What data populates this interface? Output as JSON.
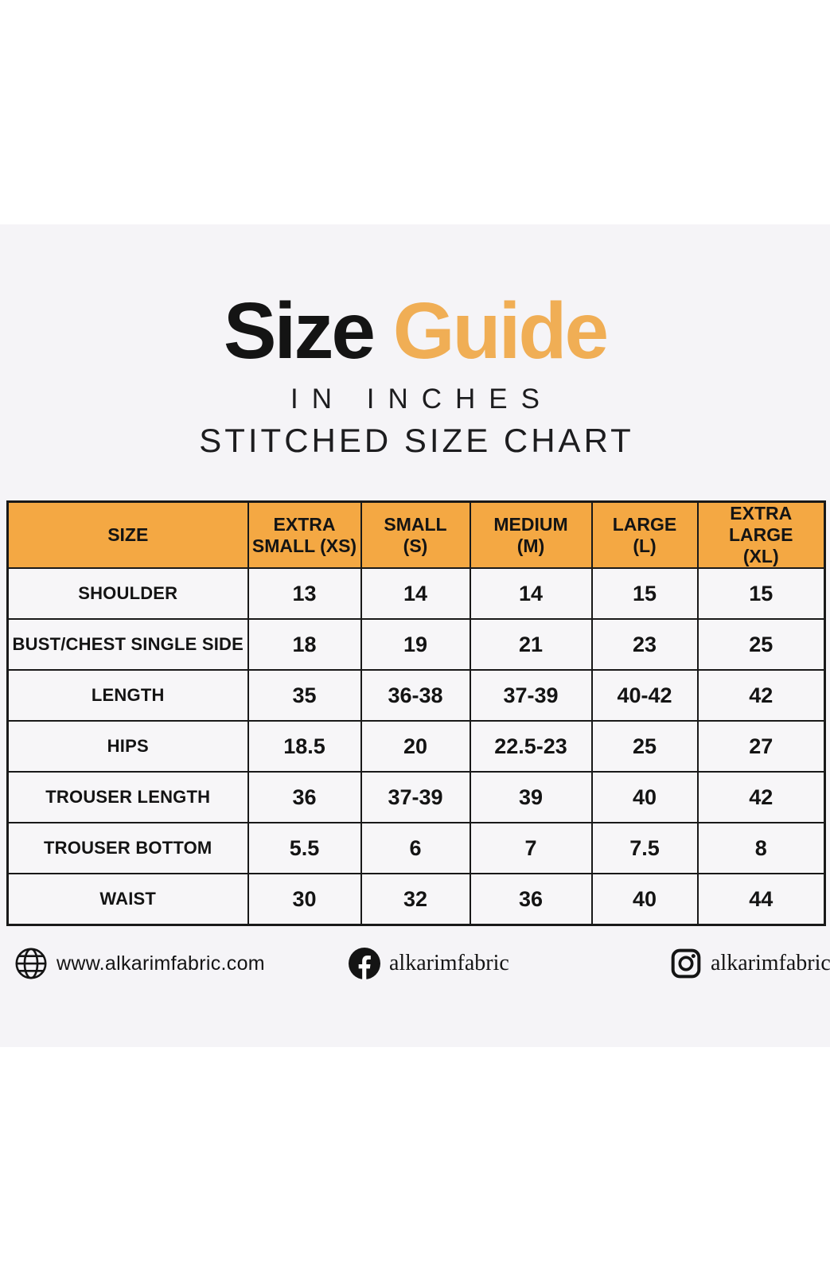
{
  "colors": {
    "accent_orange_header": "#f4a843",
    "title_orange": "#f0ae55",
    "ink": "#141414",
    "page_gray": "#f5f4f7",
    "cell_bg": "#f7f6f8",
    "band_white": "#ffffff"
  },
  "header": {
    "title_black": "Size",
    "title_orange": "Guide",
    "subtitle_inches": "IN INCHES",
    "subtitle_chart": "STITCHED SIZE CHART"
  },
  "chart_data": {
    "type": "table",
    "title": "Size Guide",
    "subtitle": "IN INCHES — STITCHED SIZE CHART",
    "units": "inches",
    "columns": [
      "SIZE",
      "EXTRA SMALL (XS)",
      "SMALL (S)",
      "MEDIUM (M)",
      "LARGE (L)",
      "EXTRA LARGE (XL)"
    ],
    "rows": [
      [
        "SHOULDER",
        "13",
        "14",
        "14",
        "15",
        "15"
      ],
      [
        "BUST/CHEST SINGLE SIDE",
        "18",
        "19",
        "21",
        "23",
        "25"
      ],
      [
        "LENGTH",
        "35",
        "36-38",
        "37-39",
        "40-42",
        "42"
      ],
      [
        "HIPS",
        "18.5",
        "20",
        "22.5-23",
        "25",
        "27"
      ],
      [
        "TROUSER LENGTH",
        "36",
        "37-39",
        "39",
        "40",
        "42"
      ],
      [
        "TROUSER BOTTOM",
        "5.5",
        "6",
        "7",
        "7.5",
        "8"
      ],
      [
        "WAIST",
        "30",
        "32",
        "36",
        "40",
        "44"
      ]
    ]
  },
  "table": {
    "header_display": [
      "SIZE",
      "EXTRA\nSMALL (XS)",
      "SMALL\n(S)",
      "MEDIUM\n(M)",
      "LARGE\n(L)",
      "EXTRA LARGE\n(XL)"
    ]
  },
  "footer": {
    "website": "www.alkarimfabric.com",
    "facebook_handle": "alkarimfabric",
    "instagram_handle": "alkarimfabrics"
  }
}
